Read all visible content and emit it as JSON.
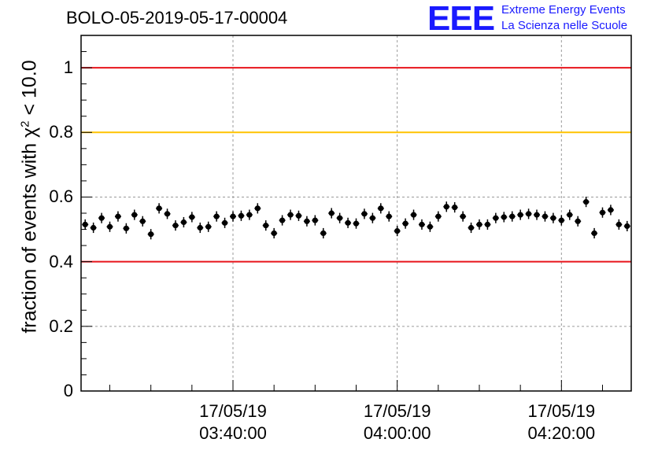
{
  "header": {
    "title": "BOLO-05-2019-05-17-00004",
    "logo_text": "EEE",
    "logo_line1": "Extreme Energy Events",
    "logo_line2": "La Scienza nelle Scuole"
  },
  "chart_data": {
    "type": "scatter",
    "title": "BOLO-05-2019-05-17-00004",
    "ylabel_prefix": "fraction of events with χ",
    "ylabel_sup": "2",
    "ylabel_suffix": " < 10.0",
    "ylim": [
      0,
      1.1
    ],
    "yticks": [
      0,
      0.2,
      0.4,
      0.6,
      0.8,
      1
    ],
    "ytick_labels": [
      "0",
      "0.2",
      "0.4",
      "0.6",
      "0.8",
      "1"
    ],
    "xlim": [
      "2019-05-17 03:21:30",
      "2019-05-17 04:28:30"
    ],
    "xticks": [
      {
        "date": "17/05/19",
        "time": "03:40:00",
        "t": "2019-05-17 03:40:00"
      },
      {
        "date": "17/05/19",
        "time": "04:00:00",
        "t": "2019-05-17 04:00:00"
      },
      {
        "date": "17/05/19",
        "time": "04:20:00",
        "t": "2019-05-17 04:20:00"
      }
    ],
    "grid": true,
    "reference_lines": [
      {
        "y": 1.0,
        "color": "#e8141b"
      },
      {
        "y": 0.8,
        "color": "#ffc300"
      },
      {
        "y": 0.4,
        "color": "#e8141b"
      }
    ],
    "series": [
      {
        "marker_color": "#000000",
        "x": [
          "03:22:00",
          "03:23:00",
          "03:24:00",
          "03:25:00",
          "03:26:00",
          "03:27:00",
          "03:28:00",
          "03:29:00",
          "03:30:00",
          "03:31:00",
          "03:32:00",
          "03:33:00",
          "03:34:00",
          "03:35:00",
          "03:36:00",
          "03:37:00",
          "03:38:00",
          "03:39:00",
          "03:40:00",
          "03:41:00",
          "03:42:00",
          "03:43:00",
          "03:44:00",
          "03:45:00",
          "03:46:00",
          "03:47:00",
          "03:48:00",
          "03:49:00",
          "03:50:00",
          "03:51:00",
          "03:52:00",
          "03:53:00",
          "03:54:00",
          "03:55:00",
          "03:56:00",
          "03:57:00",
          "03:58:00",
          "03:59:00",
          "04:00:00",
          "04:01:00",
          "04:02:00",
          "04:03:00",
          "04:04:00",
          "04:05:00",
          "04:06:00",
          "04:07:00",
          "04:08:00",
          "04:09:00",
          "04:10:00",
          "04:11:00",
          "04:12:00",
          "04:13:00",
          "04:14:00",
          "04:15:00",
          "04:16:00",
          "04:17:00",
          "04:18:00",
          "04:19:00",
          "04:20:00",
          "04:21:00",
          "04:22:00",
          "04:23:00",
          "04:24:00",
          "04:25:00",
          "04:26:00",
          "04:27:00",
          "04:28:00"
        ],
        "y": [
          0.515,
          0.505,
          0.535,
          0.508,
          0.54,
          0.503,
          0.545,
          0.525,
          0.485,
          0.565,
          0.548,
          0.512,
          0.522,
          0.538,
          0.505,
          0.508,
          0.54,
          0.52,
          0.54,
          0.542,
          0.545,
          0.565,
          0.512,
          0.488,
          0.528,
          0.545,
          0.542,
          0.525,
          0.528,
          0.488,
          0.55,
          0.535,
          0.52,
          0.518,
          0.548,
          0.535,
          0.565,
          0.54,
          0.495,
          0.518,
          0.545,
          0.515,
          0.508,
          0.54,
          0.57,
          0.568,
          0.54,
          0.505,
          0.515,
          0.515,
          0.535,
          0.538,
          0.54,
          0.545,
          0.548,
          0.545,
          0.54,
          0.535,
          0.528,
          0.545,
          0.525,
          0.585,
          0.488,
          0.552,
          0.56,
          0.515,
          0.51
        ],
        "yerr": 0.016
      }
    ]
  }
}
